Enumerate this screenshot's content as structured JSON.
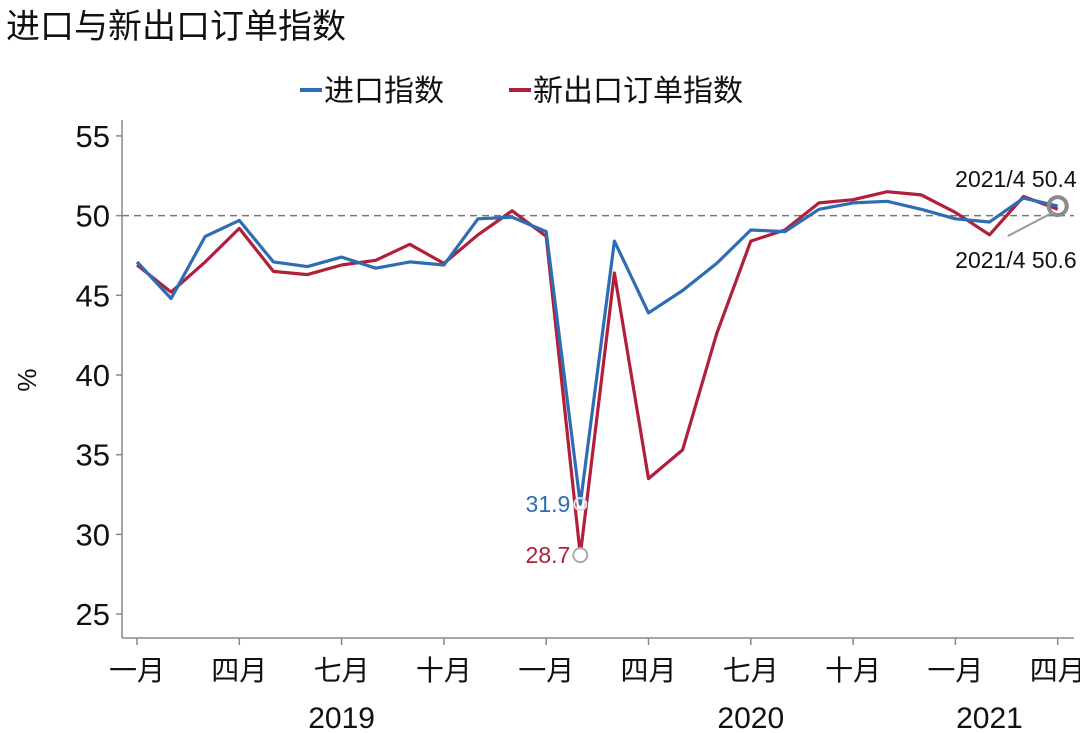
{
  "chart_data": {
    "type": "line",
    "title": "进口与新出口订单指数",
    "ylabel": "%",
    "ylim": [
      23.5,
      56
    ],
    "yticks": [
      25,
      30,
      35,
      40,
      45,
      50,
      55
    ],
    "reference_line": 50,
    "legend_position": "top",
    "x": [
      "2019-01",
      "2019-02",
      "2019-03",
      "2019-04",
      "2019-05",
      "2019-06",
      "2019-07",
      "2019-08",
      "2019-09",
      "2019-10",
      "2019-11",
      "2019-12",
      "2020-01",
      "2020-02",
      "2020-03",
      "2020-04",
      "2020-05",
      "2020-06",
      "2020-07",
      "2020-08",
      "2020-09",
      "2020-10",
      "2020-11",
      "2020-12",
      "2021-01",
      "2021-02",
      "2021-03",
      "2021-04"
    ],
    "xtick_labels": [
      "一月",
      "四月",
      "七月",
      "十月",
      "一月",
      "四月",
      "七月",
      "十月",
      "一月",
      "四月"
    ],
    "xtick_positions": [
      "2019-01",
      "2019-04",
      "2019-07",
      "2019-10",
      "2020-01",
      "2020-04",
      "2020-07",
      "2020-10",
      "2021-01",
      "2021-04"
    ],
    "year_labels": [
      {
        "label": "2019",
        "at": "2019-07"
      },
      {
        "label": "2020",
        "at": "2020-07"
      },
      {
        "label": "2021",
        "at": "2021-02"
      }
    ],
    "series": [
      {
        "name": "进口指数",
        "color": "#2e6db4",
        "values": [
          47.1,
          44.8,
          48.7,
          49.7,
          47.1,
          46.8,
          47.4,
          46.7,
          47.1,
          46.9,
          49.8,
          49.9,
          49.0,
          31.9,
          48.4,
          43.9,
          45.3,
          47.0,
          49.1,
          49.0,
          50.4,
          50.8,
          50.9,
          50.4,
          49.8,
          49.6,
          51.1,
          50.6
        ]
      },
      {
        "name": "新出口订单指数",
        "color": "#b0203a",
        "values": [
          46.9,
          45.2,
          47.1,
          49.2,
          46.5,
          46.3,
          46.9,
          47.2,
          48.2,
          47.0,
          48.8,
          50.3,
          48.7,
          28.7,
          46.4,
          33.5,
          35.3,
          42.6,
          48.4,
          49.1,
          50.8,
          51.0,
          51.5,
          51.3,
          50.2,
          48.8,
          51.2,
          50.4
        ]
      }
    ],
    "annotations": [
      {
        "text": "31.9",
        "series": 0,
        "at": "2020-02",
        "color": "#2e6db4"
      },
      {
        "text": "28.7",
        "series": 1,
        "at": "2020-02",
        "color": "#b0203a"
      },
      {
        "text": "2021/4 50.4",
        "series": 1,
        "at": "2021-04",
        "color": "#111111"
      },
      {
        "text": "2021/4 50.6",
        "series": 0,
        "at": "2021-04",
        "color": "#111111"
      }
    ]
  }
}
